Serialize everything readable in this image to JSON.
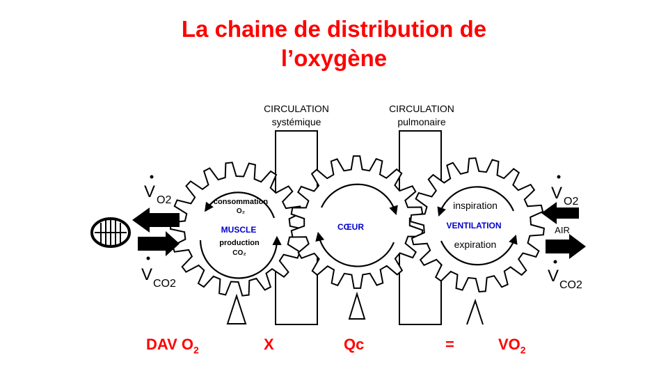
{
  "title": {
    "line1": "La chaine de distribution  de",
    "line2": "l’oxygène"
  },
  "circulation_systemic": {
    "line1": "CIRCULATION",
    "line2": "systémique"
  },
  "circulation_pulmonary": {
    "line1": "CIRCULATION",
    "line2": "pulmonaire"
  },
  "muscle_gear": {
    "top1": "consommation",
    "top2": "O₂",
    "name": "MUSCLE",
    "bottom1": "production",
    "bottom2": "CO₂"
  },
  "heart_gear": {
    "name": "CŒUR"
  },
  "lung_gear": {
    "top": "inspiration",
    "name": "VENTILATION",
    "bottom": "expiration"
  },
  "left_flux": {
    "vo2_v": "V",
    "vo2_sub": "O2",
    "vco2_v": "V",
    "vco2_sub": "CO2"
  },
  "right_flux": {
    "vo2_v": "V",
    "vo2_sub": "O2",
    "air": "AIR",
    "vco2_v": "V",
    "vco2_sub": "CO2"
  },
  "equation": {
    "term1": "DAV O",
    "term1_sub": "2",
    "times": "X",
    "term2": "Qc",
    "equals": "=",
    "result": "VO",
    "result_sub": "2"
  },
  "colors": {
    "title": "#ff0000",
    "gear_label": "#0000cc",
    "line": "#000000"
  }
}
